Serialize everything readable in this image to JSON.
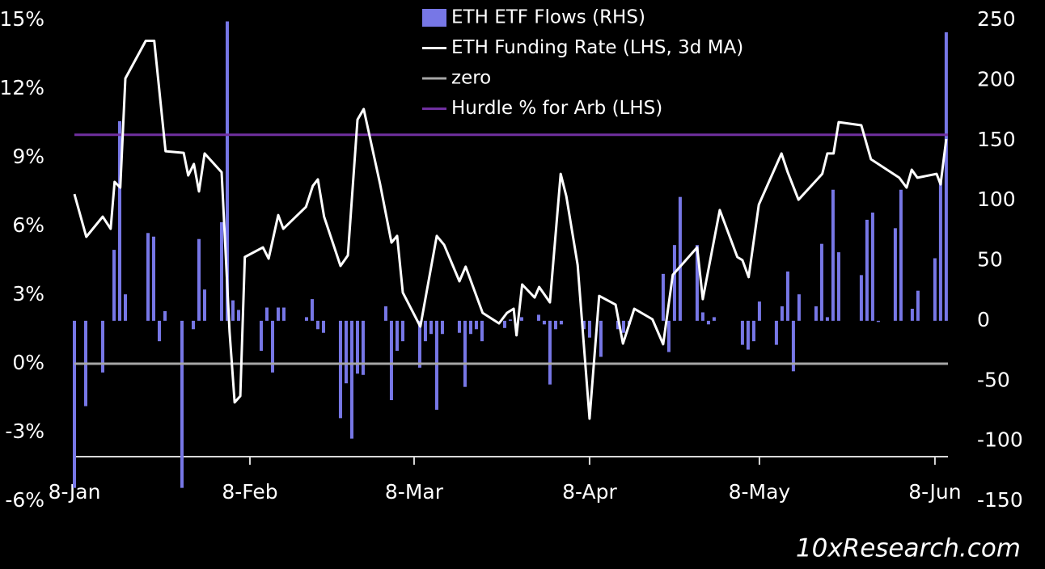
{
  "chart_data": {
    "type": "combo",
    "watermark": "10xResearch.com",
    "legend": "top-center",
    "xlim": [
      0,
      154.3
    ],
    "xticks": [
      {
        "value": 0,
        "label": "8-Jan"
      },
      {
        "value": 31,
        "label": "8-Feb"
      },
      {
        "value": 60,
        "label": "8-Mar"
      },
      {
        "value": 91,
        "label": "8-Apr"
      },
      {
        "value": 121,
        "label": "8-May"
      },
      {
        "value": 152,
        "label": "8-Jun"
      }
    ],
    "ylim": [
      -6,
      15
    ],
    "yticks": [
      {
        "value": -6,
        "label": "-6%"
      },
      {
        "value": -3,
        "label": "-3%"
      },
      {
        "value": 0,
        "label": "0%"
      },
      {
        "value": 3,
        "label": "3%"
      },
      {
        "value": 6,
        "label": "6%"
      },
      {
        "value": 9,
        "label": "9%"
      },
      {
        "value": 12,
        "label": "12%"
      },
      {
        "value": 15,
        "label": "15%"
      }
    ],
    "y2lim": [
      -150,
      250
    ],
    "y2ticks": [
      -150,
      -100,
      -50,
      0,
      50,
      100,
      150,
      200,
      250
    ],
    "series": [
      {
        "name": "ETH ETF Flows (RHS)",
        "type": "bar",
        "axis": "y2",
        "color": "#7777e6",
        "x": [
          0,
          2,
          5,
          7,
          8,
          9,
          13,
          14,
          15,
          16,
          19,
          21,
          22,
          23,
          26,
          27,
          28,
          29,
          33,
          34,
          35,
          36,
          37,
          41,
          42,
          43,
          44,
          47,
          48,
          49,
          50,
          51,
          55,
          56,
          57,
          58,
          61,
          62,
          63,
          64,
          65,
          68,
          69,
          70,
          71,
          72,
          76,
          77,
          79,
          82,
          83,
          84,
          85,
          86,
          90,
          91,
          93,
          96,
          97,
          98,
          104,
          105,
          106,
          107,
          110,
          111,
          112,
          113,
          118,
          119,
          120,
          121,
          124,
          125,
          126,
          127,
          128,
          131,
          132,
          133,
          134,
          135,
          139,
          140,
          141,
          142,
          145,
          146,
          148,
          149,
          152,
          153,
          154
        ],
        "values": [
          -139,
          -71,
          -43,
          59,
          166,
          22,
          73,
          70,
          -17,
          8,
          -139,
          -7,
          68,
          26,
          82,
          249,
          17,
          9,
          -25,
          11,
          -43,
          11,
          11,
          3,
          18,
          -7,
          -10,
          -81,
          -52,
          -98,
          -44,
          -45,
          12,
          -66,
          -25,
          -17,
          -39,
          -17,
          -11,
          -74,
          -11,
          -10,
          -55,
          -11,
          -7,
          -17,
          -6,
          1,
          3,
          5,
          -3,
          -53,
          -7,
          -3,
          -7,
          -14,
          -30,
          -7,
          -10,
          -3,
          39,
          -26,
          63,
          103,
          63,
          7,
          -3,
          3,
          -20,
          -24,
          -17,
          16,
          -20,
          12,
          41,
          -42,
          22,
          12,
          64,
          3,
          109,
          57,
          38,
          84,
          90,
          -1,
          77,
          109,
          10,
          25,
          52,
          118,
          240
        ]
      },
      {
        "name": "ETH Funding Rate (LHS, 3d MA)",
        "type": "line",
        "color": "#ffffff",
        "x": [
          0,
          2.1,
          5,
          6.4,
          7.1,
          8.1,
          9,
          12.6,
          14.1,
          16.1,
          19.3,
          20.1,
          21.1,
          22,
          23,
          26,
          27.4,
          28.3,
          29.3,
          30.1,
          33.3,
          34.3,
          36,
          36.9,
          40.9,
          42.1,
          43,
          44.1,
          47,
          48.3,
          50,
          51.1,
          54,
          56,
          57,
          58,
          61.1,
          64,
          65.3,
          68,
          69.1,
          72.1,
          75,
          76.4,
          77.6,
          78.1,
          79.1,
          81.3,
          82.1,
          84,
          85.9,
          86.9,
          88.9,
          91,
          92.7,
          95.6,
          96.9,
          98.9,
          102.1,
          104,
          105.7,
          110,
          111,
          114,
          117.1,
          118,
          119.1,
          120.9,
          124.9,
          126,
          127.9,
          132.1,
          133,
          134.1,
          135,
          139,
          140.7,
          145.7,
          147,
          147.9,
          148.9,
          152.3,
          153,
          154
        ],
        "values": [
          7.41,
          5.54,
          6.42,
          5.89,
          7.94,
          7.69,
          12.46,
          14.1,
          14.1,
          9.28,
          9.21,
          8.22,
          8.72,
          7.52,
          9.18,
          8.36,
          1.41,
          -1.69,
          -1.41,
          4.66,
          5.08,
          4.59,
          6.49,
          5.89,
          6.85,
          7.76,
          8.05,
          6.42,
          4.27,
          4.73,
          10.66,
          11.12,
          7.83,
          5.29,
          5.58,
          3.11,
          1.62,
          5.58,
          5.19,
          3.6,
          4.24,
          2.22,
          1.76,
          2.22,
          2.4,
          1.24,
          3.46,
          2.89,
          3.35,
          2.68,
          8.29,
          7.31,
          4.31,
          -2.4,
          2.96,
          2.58,
          0.88,
          2.4,
          1.94,
          0.85,
          3.88,
          5.08,
          2.82,
          6.71,
          4.66,
          4.52,
          3.78,
          6.95,
          9.18,
          8.36,
          7.16,
          8.29,
          9.18,
          9.18,
          10.55,
          10.41,
          8.93,
          8.12,
          7.69,
          8.47,
          8.12,
          8.29,
          7.83,
          9.81
        ]
      },
      {
        "name": "zero",
        "type": "line",
        "color": "#a6a6a6",
        "x": [
          0,
          154.3
        ],
        "values": [
          0,
          0
        ]
      },
      {
        "name": "Hurdle % for Arb (LHS)",
        "type": "line",
        "color": "#7030a0",
        "x": [
          0,
          154.3
        ],
        "values": [
          10,
          10
        ]
      }
    ]
  }
}
